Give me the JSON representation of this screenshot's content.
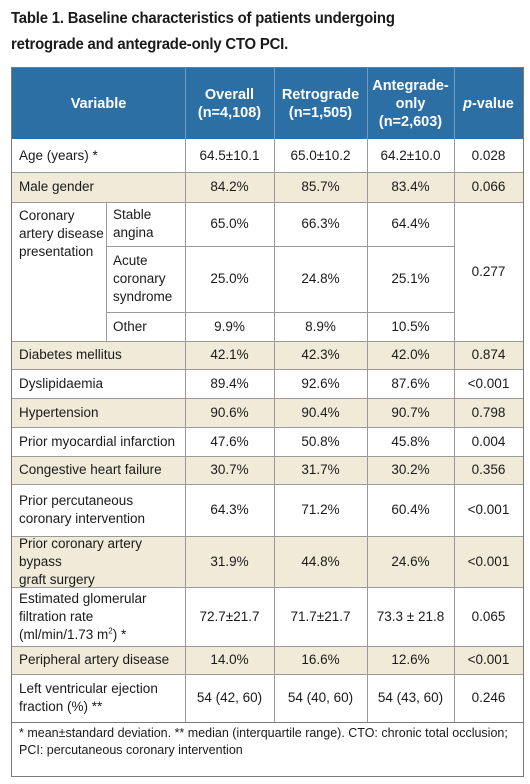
{
  "caption": {
    "line1": "Table 1. Baseline characteristics of patients undergoing",
    "line2": "retrograde and antegrade-only CTO PCI."
  },
  "header": {
    "variable": "Variable",
    "overall_l1": "Overall",
    "overall_l2": "(n=4,108)",
    "retro_l1": "Retrograde",
    "retro_l2": "(n=1,505)",
    "ante_l1": "Antegrade-",
    "ante_l2": "only",
    "ante_l3": "(n=2,603)",
    "p_italic": "p",
    "p_rest": "-value"
  },
  "rows": [
    {
      "label": "Age (years) *",
      "overall": "64.5±10.1",
      "retro": "65.0±10.2",
      "ante": "64.2±10.0",
      "p": "0.028"
    },
    {
      "label": "Male gender",
      "overall": "84.2%",
      "retro": "85.7%",
      "ante": "83.4%",
      "p": "0.066"
    },
    {
      "label": "Diabetes mellitus",
      "overall": "42.1%",
      "retro": "42.3%",
      "ante": "42.0%",
      "p": "0.874"
    },
    {
      "label": "Dyslipidaemia",
      "overall": "89.4%",
      "retro": "92.6%",
      "ante": "87.6%",
      "p": "<0.001"
    },
    {
      "label": "Hypertension",
      "overall": "90.6%",
      "retro": "90.4%",
      "ante": "90.7%",
      "p": "0.798"
    },
    {
      "label": "Prior myocardial infarction",
      "overall": "47.6%",
      "retro": "50.8%",
      "ante": "45.8%",
      "p": "0.004"
    },
    {
      "label": "Congestive heart failure",
      "overall": "30.7%",
      "retro": "31.7%",
      "ante": "30.2%",
      "p": "0.356"
    },
    {
      "label_l1": "Prior percutaneous",
      "label_l2": "coronary intervention",
      "overall": "64.3%",
      "retro": "71.2%",
      "ante": "60.4%",
      "p": "<0.001"
    },
    {
      "label_l1": "Prior coronary artery bypass",
      "label_l2": "graft surgery",
      "overall": "31.9%",
      "retro": "44.8%",
      "ante": "24.6%",
      "p": "<0.001"
    },
    {
      "label_l1": "Estimated glomerular",
      "label_l2": "filtration rate",
      "label_l3a": "(ml/min/1.73 m",
      "label_l3sup": "2",
      "label_l3b": ") *",
      "overall": "72.7±21.7",
      "retro": "71.7±21.7",
      "ante": "73.3 ± 21.8",
      "p": "0.065"
    },
    {
      "label": "Peripheral artery disease",
      "overall": "14.0%",
      "retro": "16.6%",
      "ante": "12.6%",
      "p": "<0.001"
    },
    {
      "label_l1": "Left ventricular ejection",
      "label_l2": "fraction (%) **",
      "overall": "54 (42, 60)",
      "retro": "54 (40, 60)",
      "ante": "54 (43, 60)",
      "p": "0.246"
    }
  ],
  "cad": {
    "label_l1": "Coronary",
    "label_l2": "artery disease",
    "label_l3": "presentation",
    "p": "0.277",
    "subrows": [
      {
        "l1": "Stable",
        "l2": "angina",
        "overall": "65.0%",
        "retro": "66.3%",
        "ante": "64.4%"
      },
      {
        "l1": "Acute",
        "l2": "coronary",
        "l3": "syndrome",
        "overall": "25.0%",
        "retro": "24.8%",
        "ante": "25.1%"
      },
      {
        "l1": "Other",
        "overall": "9.9%",
        "retro": "8.9%",
        "ante": "10.5%"
      }
    ]
  },
  "footnote": {
    "line1": "* mean±standard deviation. ** median (interquartile range). CTO: chronic total occlusion;",
    "line2": "PCI: percutaneous coronary intervention"
  },
  "colors": {
    "header_bg": "#2b6fa5",
    "band": "#efebd8"
  }
}
